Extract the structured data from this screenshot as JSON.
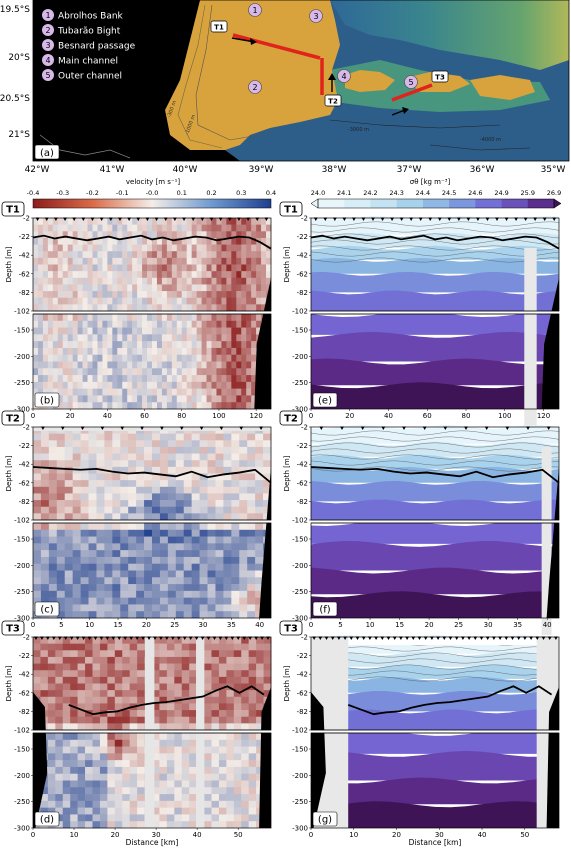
{
  "map": {
    "panel_label": "(a)",
    "lat_labels": [
      "19.5°S",
      "20°S",
      "20.5°S",
      "21°S"
    ],
    "lon_labels": [
      "42°W",
      "41°W",
      "40°W",
      "39°W",
      "38°W",
      "37°W",
      "36°W",
      "35°W"
    ],
    "legend": [
      {
        "num": "1",
        "text": "Abrolhos Bank"
      },
      {
        "num": "2",
        "text": "Tubarão Bight"
      },
      {
        "num": "3",
        "text": "Besnard passage"
      },
      {
        "num": "4",
        "text": "Main channel"
      },
      {
        "num": "5",
        "text": "Outer channel"
      }
    ],
    "transect_labels": [
      "T1",
      "T2",
      "T3"
    ],
    "contour_labels": [
      "-300 m",
      "-1000 m",
      "-3000 m",
      "-4000 m"
    ],
    "colors": {
      "land": "#000000",
      "shelf": "#d8a23c",
      "deep": "#2f5a86",
      "transect": "#e0241c",
      "marker": "#d7b8e8"
    }
  },
  "colorbars": {
    "velocity": {
      "label": "velocity [m s⁻¹]",
      "ticks": [
        "-0.4",
        "-0.3",
        "-0.2",
        "-0.1",
        "-0.0",
        "0.1",
        "0.2",
        "0.3",
        "0.4"
      ]
    },
    "density": {
      "label": "σθ [kg m⁻³]",
      "ticks": [
        "24.0",
        "24.1",
        "24.2",
        "24.3",
        "24.4",
        "24.5",
        "24.6",
        "24.9",
        "25.9",
        "26.9"
      ]
    }
  },
  "chart_data": [
    {
      "type": "heatmap",
      "variable": "velocity",
      "transect": "T1",
      "panel": "(b)",
      "xlabel": "",
      "ylabel": "Depth [m]",
      "xlim": [
        0,
        128
      ],
      "x_ticks": [
        "0",
        "20",
        "40",
        "60",
        "80",
        "100",
        "120"
      ],
      "y_ticks_upper": [
        "-2",
        "-22",
        "-42",
        "-62",
        "-82",
        "-102"
      ],
      "y_ticks_lower": [
        "-150",
        "-200",
        "-250",
        "-300"
      ],
      "mixed_layer_depth": [
        -23,
        -21,
        -24,
        -22,
        -24,
        -26,
        -24,
        -22,
        -25,
        -23,
        -21,
        -25,
        -23,
        -26,
        -24,
        -22,
        -23,
        -26,
        -24,
        -22,
        -23,
        -28,
        -35
      ]
    },
    {
      "type": "heatmap",
      "variable": "velocity",
      "transect": "T2",
      "panel": "(c)",
      "xlabel": "",
      "ylabel": "Depth [m]",
      "xlim": [
        0,
        42
      ],
      "x_ticks": [
        "0",
        "5",
        "10",
        "15",
        "20",
        "25",
        "30",
        "35",
        "40"
      ],
      "y_ticks_upper": [
        "-2",
        "-22",
        "-42",
        "-62",
        "-82",
        "-102"
      ],
      "y_ticks_lower": [
        "-150",
        "-200",
        "-250",
        "-300"
      ],
      "mixed_layer_depth": [
        -45,
        -46,
        -47,
        -48,
        -47,
        -50,
        -52,
        -51,
        -53,
        -55,
        -50,
        -56,
        -53,
        -51,
        -48,
        -62
      ]
    },
    {
      "type": "heatmap",
      "variable": "velocity",
      "transect": "T3",
      "panel": "(d)",
      "xlabel": "Distance [km]",
      "ylabel": "Depth [m]",
      "xlim": [
        0,
        58
      ],
      "x_ticks": [
        "0",
        "10",
        "20",
        "30",
        "40",
        "50"
      ],
      "y_ticks_upper": [
        "-2",
        "-22",
        "-42",
        "-62",
        "-82",
        "-102"
      ],
      "y_ticks_lower": [
        "-150",
        "-200",
        "-250",
        "-300"
      ],
      "mixed_layer_depth": [
        -75,
        -80,
        -85,
        -83,
        -82,
        -78,
        -75,
        -73,
        -72,
        -70,
        -68,
        -66,
        -60,
        -55,
        -62,
        -55,
        -64
      ]
    },
    {
      "type": "heatmap",
      "variable": "density",
      "transect": "T1",
      "panel": "(e)",
      "xlabel": "",
      "ylabel": "Depth [m]",
      "xlim": [
        0,
        128
      ],
      "x_ticks": [
        "0",
        "20",
        "40",
        "60",
        "80",
        "100",
        "120"
      ],
      "y_ticks_upper": [
        "-2",
        "-22",
        "-42",
        "-62",
        "-82",
        "-102"
      ],
      "y_ticks_lower": [
        "-150",
        "-200",
        "-250",
        "-300"
      ]
    },
    {
      "type": "heatmap",
      "variable": "density",
      "transect": "T2",
      "panel": "(f)",
      "xlabel": "",
      "ylabel": "Depth [m]",
      "xlim": [
        0,
        42
      ],
      "x_ticks": [
        "0",
        "5",
        "10",
        "15",
        "20",
        "25",
        "30",
        "35",
        "40"
      ],
      "y_ticks_upper": [
        "-2",
        "-22",
        "-42",
        "-62",
        "-82",
        "-102"
      ],
      "y_ticks_lower": [
        "-150",
        "-200",
        "-250",
        "-300"
      ]
    },
    {
      "type": "heatmap",
      "variable": "density",
      "transect": "T3",
      "panel": "(g)",
      "xlabel": "Distance [km]",
      "ylabel": "Depth [m]",
      "xlim": [
        0,
        58
      ],
      "x_ticks": [
        "0",
        "10",
        "20",
        "30",
        "40",
        "50"
      ],
      "y_ticks_upper": [
        "-2",
        "-22",
        "-42",
        "-62",
        "-82",
        "-102"
      ],
      "y_ticks_lower": [
        "-150",
        "-200",
        "-250",
        "-300"
      ]
    }
  ]
}
